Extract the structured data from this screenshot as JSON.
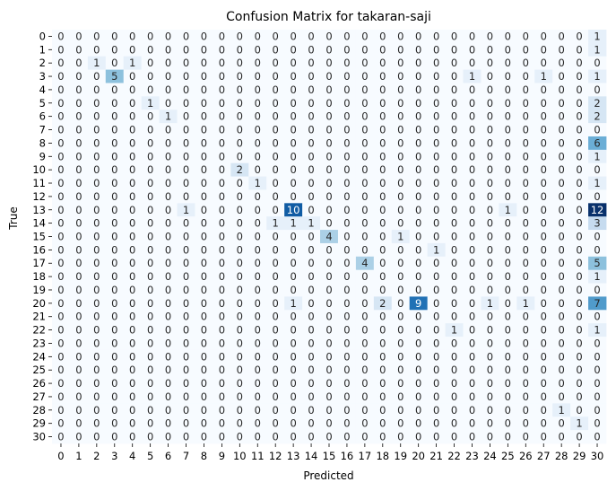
{
  "chart_data": {
    "type": "heatmap",
    "title": "Confusion Matrix for takaran-saji",
    "xlabel": "Predicted",
    "ylabel": "True",
    "x_categories": [
      "0",
      "1",
      "2",
      "3",
      "4",
      "5",
      "6",
      "7",
      "8",
      "9",
      "10",
      "11",
      "12",
      "13",
      "14",
      "15",
      "16",
      "17",
      "18",
      "19",
      "20",
      "21",
      "22",
      "23",
      "24",
      "25",
      "26",
      "27",
      "28",
      "29",
      "30"
    ],
    "y_categories": [
      "0",
      "1",
      "2",
      "3",
      "4",
      "5",
      "6",
      "7",
      "8",
      "9",
      "10",
      "11",
      "12",
      "13",
      "14",
      "15",
      "16",
      "17",
      "18",
      "19",
      "20",
      "21",
      "22",
      "23",
      "24",
      "25",
      "26",
      "27",
      "28",
      "29",
      "30"
    ],
    "color_scale": "Blues",
    "vmin": 0,
    "vmax": 12,
    "colorbar": false,
    "matrix": [
      [
        0,
        0,
        0,
        0,
        0,
        0,
        0,
        0,
        0,
        0,
        0,
        0,
        0,
        0,
        0,
        0,
        0,
        0,
        0,
        0,
        0,
        0,
        0,
        0,
        0,
        0,
        0,
        0,
        0,
        0,
        1
      ],
      [
        0,
        0,
        0,
        0,
        0,
        0,
        0,
        0,
        0,
        0,
        0,
        0,
        0,
        0,
        0,
        0,
        0,
        0,
        0,
        0,
        0,
        0,
        0,
        0,
        0,
        0,
        0,
        0,
        0,
        0,
        1
      ],
      [
        0,
        0,
        1,
        0,
        1,
        0,
        0,
        0,
        0,
        0,
        0,
        0,
        0,
        0,
        0,
        0,
        0,
        0,
        0,
        0,
        0,
        0,
        0,
        0,
        0,
        0,
        0,
        0,
        0,
        0,
        0
      ],
      [
        0,
        0,
        0,
        5,
        0,
        0,
        0,
        0,
        0,
        0,
        0,
        0,
        0,
        0,
        0,
        0,
        0,
        0,
        0,
        0,
        0,
        0,
        0,
        1,
        0,
        0,
        0,
        1,
        0,
        0,
        1
      ],
      [
        0,
        0,
        0,
        0,
        0,
        0,
        0,
        0,
        0,
        0,
        0,
        0,
        0,
        0,
        0,
        0,
        0,
        0,
        0,
        0,
        0,
        0,
        0,
        0,
        0,
        0,
        0,
        0,
        0,
        0,
        0
      ],
      [
        0,
        0,
        0,
        0,
        0,
        1,
        0,
        0,
        0,
        0,
        0,
        0,
        0,
        0,
        0,
        0,
        0,
        0,
        0,
        0,
        0,
        0,
        0,
        0,
        0,
        0,
        0,
        0,
        0,
        0,
        2
      ],
      [
        0,
        0,
        0,
        0,
        0,
        0,
        1,
        0,
        0,
        0,
        0,
        0,
        0,
        0,
        0,
        0,
        0,
        0,
        0,
        0,
        0,
        0,
        0,
        0,
        0,
        0,
        0,
        0,
        0,
        0,
        2
      ],
      [
        0,
        0,
        0,
        0,
        0,
        0,
        0,
        0,
        0,
        0,
        0,
        0,
        0,
        0,
        0,
        0,
        0,
        0,
        0,
        0,
        0,
        0,
        0,
        0,
        0,
        0,
        0,
        0,
        0,
        0,
        0
      ],
      [
        0,
        0,
        0,
        0,
        0,
        0,
        0,
        0,
        0,
        0,
        0,
        0,
        0,
        0,
        0,
        0,
        0,
        0,
        0,
        0,
        0,
        0,
        0,
        0,
        0,
        0,
        0,
        0,
        0,
        0,
        6
      ],
      [
        0,
        0,
        0,
        0,
        0,
        0,
        0,
        0,
        0,
        0,
        0,
        0,
        0,
        0,
        0,
        0,
        0,
        0,
        0,
        0,
        0,
        0,
        0,
        0,
        0,
        0,
        0,
        0,
        0,
        0,
        1
      ],
      [
        0,
        0,
        0,
        0,
        0,
        0,
        0,
        0,
        0,
        0,
        2,
        0,
        0,
        0,
        0,
        0,
        0,
        0,
        0,
        0,
        0,
        0,
        0,
        0,
        0,
        0,
        0,
        0,
        0,
        0,
        0
      ],
      [
        0,
        0,
        0,
        0,
        0,
        0,
        0,
        0,
        0,
        0,
        0,
        1,
        0,
        0,
        0,
        0,
        0,
        0,
        0,
        0,
        0,
        0,
        0,
        0,
        0,
        0,
        0,
        0,
        0,
        0,
        1
      ],
      [
        0,
        0,
        0,
        0,
        0,
        0,
        0,
        0,
        0,
        0,
        0,
        0,
        0,
        0,
        0,
        0,
        0,
        0,
        0,
        0,
        0,
        0,
        0,
        0,
        0,
        0,
        0,
        0,
        0,
        0,
        0
      ],
      [
        0,
        0,
        0,
        0,
        0,
        0,
        0,
        1,
        0,
        0,
        0,
        0,
        0,
        10,
        0,
        0,
        0,
        0,
        0,
        0,
        0,
        0,
        0,
        0,
        0,
        1,
        0,
        0,
        0,
        0,
        12
      ],
      [
        0,
        0,
        0,
        0,
        0,
        0,
        0,
        0,
        0,
        0,
        0,
        0,
        1,
        1,
        1,
        0,
        0,
        0,
        0,
        0,
        0,
        0,
        0,
        0,
        0,
        0,
        0,
        0,
        0,
        0,
        3
      ],
      [
        0,
        0,
        0,
        0,
        0,
        0,
        0,
        0,
        0,
        0,
        0,
        0,
        0,
        0,
        0,
        4,
        0,
        0,
        0,
        1,
        0,
        0,
        0,
        0,
        0,
        0,
        0,
        0,
        0,
        0,
        0
      ],
      [
        0,
        0,
        0,
        0,
        0,
        0,
        0,
        0,
        0,
        0,
        0,
        0,
        0,
        0,
        0,
        0,
        0,
        0,
        0,
        0,
        0,
        1,
        0,
        0,
        0,
        0,
        0,
        0,
        0,
        0,
        0
      ],
      [
        0,
        0,
        0,
        0,
        0,
        0,
        0,
        0,
        0,
        0,
        0,
        0,
        0,
        0,
        0,
        0,
        0,
        4,
        0,
        0,
        0,
        0,
        0,
        0,
        0,
        0,
        0,
        0,
        0,
        0,
        5
      ],
      [
        0,
        0,
        0,
        0,
        0,
        0,
        0,
        0,
        0,
        0,
        0,
        0,
        0,
        0,
        0,
        0,
        0,
        0,
        0,
        0,
        0,
        0,
        0,
        0,
        0,
        0,
        0,
        0,
        0,
        0,
        1
      ],
      [
        0,
        0,
        0,
        0,
        0,
        0,
        0,
        0,
        0,
        0,
        0,
        0,
        0,
        0,
        0,
        0,
        0,
        0,
        0,
        0,
        0,
        0,
        0,
        0,
        0,
        0,
        0,
        0,
        0,
        0,
        0
      ],
      [
        0,
        0,
        0,
        0,
        0,
        0,
        0,
        0,
        0,
        0,
        0,
        0,
        0,
        1,
        0,
        0,
        0,
        0,
        2,
        0,
        9,
        0,
        0,
        0,
        1,
        0,
        1,
        0,
        0,
        0,
        7
      ],
      [
        0,
        0,
        0,
        0,
        0,
        0,
        0,
        0,
        0,
        0,
        0,
        0,
        0,
        0,
        0,
        0,
        0,
        0,
        0,
        0,
        0,
        0,
        0,
        0,
        0,
        0,
        0,
        0,
        0,
        0,
        0
      ],
      [
        0,
        0,
        0,
        0,
        0,
        0,
        0,
        0,
        0,
        0,
        0,
        0,
        0,
        0,
        0,
        0,
        0,
        0,
        0,
        0,
        0,
        0,
        1,
        0,
        0,
        0,
        0,
        0,
        0,
        0,
        1
      ],
      [
        0,
        0,
        0,
        0,
        0,
        0,
        0,
        0,
        0,
        0,
        0,
        0,
        0,
        0,
        0,
        0,
        0,
        0,
        0,
        0,
        0,
        0,
        0,
        0,
        0,
        0,
        0,
        0,
        0,
        0,
        0
      ],
      [
        0,
        0,
        0,
        0,
        0,
        0,
        0,
        0,
        0,
        0,
        0,
        0,
        0,
        0,
        0,
        0,
        0,
        0,
        0,
        0,
        0,
        0,
        0,
        0,
        0,
        0,
        0,
        0,
        0,
        0,
        0
      ],
      [
        0,
        0,
        0,
        0,
        0,
        0,
        0,
        0,
        0,
        0,
        0,
        0,
        0,
        0,
        0,
        0,
        0,
        0,
        0,
        0,
        0,
        0,
        0,
        0,
        0,
        0,
        0,
        0,
        0,
        0,
        0
      ],
      [
        0,
        0,
        0,
        0,
        0,
        0,
        0,
        0,
        0,
        0,
        0,
        0,
        0,
        0,
        0,
        0,
        0,
        0,
        0,
        0,
        0,
        0,
        0,
        0,
        0,
        0,
        0,
        0,
        0,
        0,
        0
      ],
      [
        0,
        0,
        0,
        0,
        0,
        0,
        0,
        0,
        0,
        0,
        0,
        0,
        0,
        0,
        0,
        0,
        0,
        0,
        0,
        0,
        0,
        0,
        0,
        0,
        0,
        0,
        0,
        0,
        0,
        0,
        0
      ],
      [
        0,
        0,
        0,
        0,
        0,
        0,
        0,
        0,
        0,
        0,
        0,
        0,
        0,
        0,
        0,
        0,
        0,
        0,
        0,
        0,
        0,
        0,
        0,
        0,
        0,
        0,
        0,
        0,
        1,
        0,
        0
      ],
      [
        0,
        0,
        0,
        0,
        0,
        0,
        0,
        0,
        0,
        0,
        0,
        0,
        0,
        0,
        0,
        0,
        0,
        0,
        0,
        0,
        0,
        0,
        0,
        0,
        0,
        0,
        0,
        0,
        0,
        1,
        0
      ],
      [
        0,
        0,
        0,
        0,
        0,
        0,
        0,
        0,
        0,
        0,
        0,
        0,
        0,
        0,
        0,
        0,
        0,
        0,
        0,
        0,
        0,
        0,
        0,
        0,
        0,
        0,
        0,
        0,
        0,
        0,
        0
      ]
    ]
  }
}
